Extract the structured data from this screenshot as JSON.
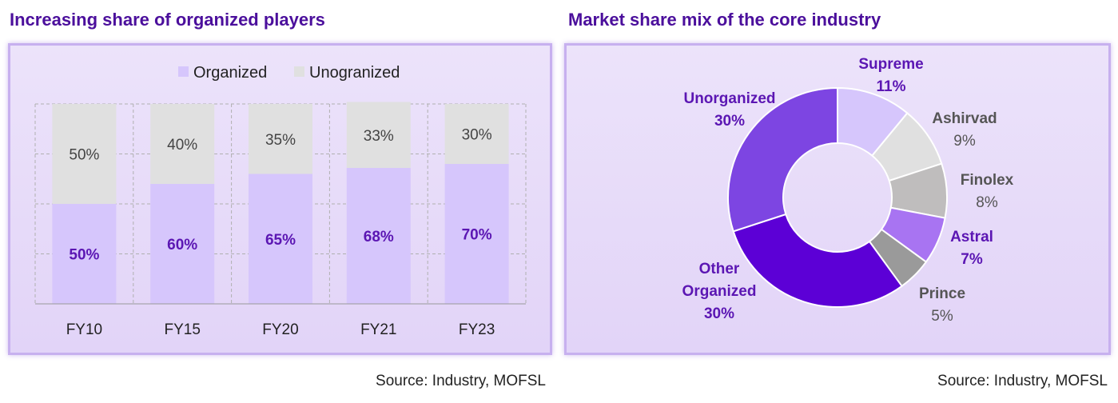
{
  "left": {
    "title": "Increasing share of organized players",
    "source": "Source: Industry, MOFSL"
  },
  "right": {
    "title": "Market share mix of the core industry",
    "source": "Source: Industry, MOFSL"
  },
  "colors": {
    "organized": "#d6c6fc",
    "unorganized": "#e0e0e0",
    "title": "#4b0f9c",
    "label_purple": "#5b16b3",
    "label_gray": "#555555"
  },
  "chart_data": [
    {
      "type": "bar",
      "stacked": true,
      "categories": [
        "FY10",
        "FY15",
        "FY20",
        "FY21",
        "FY23"
      ],
      "series": [
        {
          "name": "Organized",
          "values": [
            50,
            60,
            65,
            68,
            70
          ],
          "labels": [
            "50%",
            "60%",
            "65%",
            "68%",
            "70%"
          ],
          "color": "#d6c6fc"
        },
        {
          "name": "Unograni zed",
          "values": [
            50,
            40,
            35,
            33,
            30
          ],
          "labels": [
            "50%",
            "40%",
            "35%",
            "33%",
            "30%"
          ],
          "color": "#e0e0e0"
        }
      ],
      "legend_placement": "top-center",
      "grid": true,
      "ylim": [
        0,
        100
      ]
    },
    {
      "type": "pie",
      "donut": true,
      "slices": [
        {
          "label": "Supreme",
          "value": 11,
          "value_label": "11%",
          "color": "#d6c6fc",
          "label_color": "#5b16b3"
        },
        {
          "label": "Ashirvad",
          "value": 9,
          "value_label": "9%",
          "color": "#e0e0e0",
          "label_color": "#555555"
        },
        {
          "label": "Finolex",
          "value": 8,
          "value_label": "8%",
          "color": "#bfbdbd",
          "label_color": "#555555"
        },
        {
          "label": "Astral",
          "value": 7,
          "value_label": "7%",
          "color": "#a874f2",
          "label_color": "#5b16b3"
        },
        {
          "label": "Prince",
          "value": 5,
          "value_label": "5%",
          "color": "#9a9a9a",
          "label_color": "#555555"
        },
        {
          "label": "Other Organized",
          "value": 30,
          "value_label": "30%",
          "color": "#5c00d6",
          "label_color": "#5b16b3"
        },
        {
          "label": "Unorganized",
          "value": 30,
          "value_label": "30%",
          "color": "#7d45e2",
          "label_color": "#5b16b3"
        }
      ]
    }
  ]
}
